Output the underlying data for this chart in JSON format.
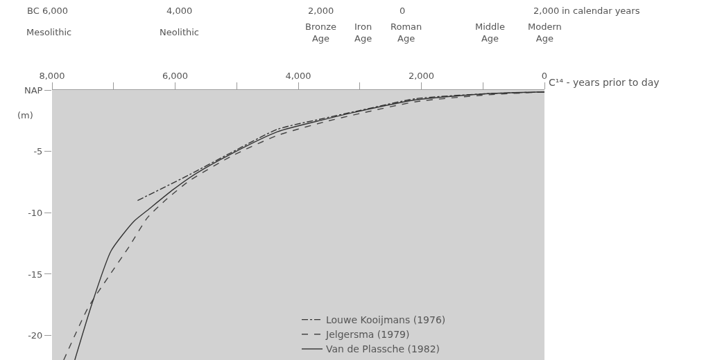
{
  "chart_data": {
    "type": "line",
    "xlabel": "C¹⁴ - years prior to day",
    "annotations": [
      "BC 6,000",
      "4,000",
      "2,000",
      "0",
      "2,000",
      "in calendar years",
      "Mesolithic",
      "Neolithic",
      "Bronze\nAge",
      "Iron\nAge",
      "Roman\nAge",
      "Middle\nAge",
      "Modern\nAge"
    ],
    "ylabel": "(m)",
    "xlim": [
      8000,
      0
    ],
    "xticks": [
      {
        "value": 8000,
        "label": "8,000"
      },
      {
        "value": 7000,
        "label": null
      },
      {
        "value": 6000,
        "label": "6,000"
      },
      {
        "value": 5000,
        "label": null
      },
      {
        "value": 4000,
        "label": "4,000"
      },
      {
        "value": 3000,
        "label": null
      },
      {
        "value": 2000,
        "label": "2,000"
      },
      {
        "value": 1000,
        "label": null
      },
      0
    ],
    "ylim": [
      -22,
      0
    ],
    "yticks": [
      {
        "value": 0,
        "label": "NAP"
      },
      -5,
      -10,
      -15,
      -20
    ],
    "grid": false,
    "legend": "bottom right",
    "marker": "none",
    "series": [
      {
        "name": "Louwe Kooijmans (1976)",
        "color": "#333333",
        "line_style": "dashdot",
        "x": [
          6610,
          5770,
          5090,
          4340,
          3580,
          2990,
          2090,
          960,
          0
        ],
        "values": [
          -9.0,
          -6.9,
          -5.1,
          -3.2,
          -2.3,
          -1.65,
          -0.7,
          -0.3,
          -0.15
        ]
      },
      {
        "name": "Jelgersma (1979)",
        "color": "#444444",
        "line_style": "dashed",
        "x": [
          7810,
          7410,
          7080,
          6740,
          6450,
          6140,
          5770,
          5090,
          4340,
          3580,
          2990,
          2090,
          960,
          0
        ],
        "values": [
          -22.0,
          -17.7,
          -15.2,
          -12.7,
          -10.4,
          -8.9,
          -7.4,
          -5.4,
          -3.7,
          -2.6,
          -1.9,
          -0.95,
          -0.4,
          -0.15
        ]
      },
      {
        "name": "Van de Plassche (1982)",
        "color": "#333333",
        "line_style": "solid",
        "x": [
          7630,
          7350,
          7040,
          6670,
          6450,
          6030,
          5660,
          5090,
          4340,
          3580,
          2990,
          2090,
          960,
          0
        ],
        "values": [
          -22.0,
          -17.4,
          -13.1,
          -10.7,
          -9.8,
          -8.1,
          -6.8,
          -5.2,
          -3.4,
          -2.4,
          -1.7,
          -0.8,
          -0.3,
          -0.15
        ]
      }
    ]
  }
}
